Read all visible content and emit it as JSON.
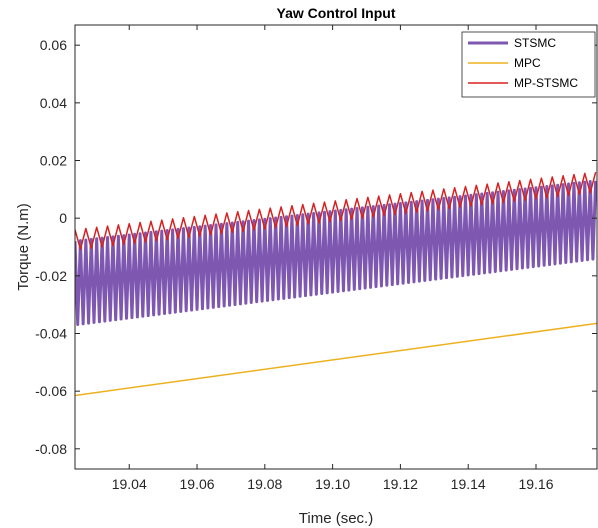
{
  "chart_data": {
    "type": "line",
    "title": "Yaw Control Input",
    "xlabel": "Time (sec.)",
    "ylabel": "Torque (N.m)",
    "xlim": [
      19.024,
      19.178
    ],
    "ylim": [
      -0.087,
      0.067
    ],
    "xticks": [
      19.04,
      19.06,
      19.08,
      19.1,
      19.12,
      19.14,
      19.16
    ],
    "xtick_labels": [
      "19.04",
      "19.06",
      "19.08",
      "19.10",
      "19.12",
      "19.14",
      "19.16"
    ],
    "yticks": [
      0.06,
      0.04,
      0.02,
      0,
      -0.02,
      -0.04,
      -0.06,
      -0.08
    ],
    "ytick_labels": [
      "0.06",
      "0.04",
      "0.02",
      "0",
      "-0.02",
      "-0.04",
      "-0.06",
      "-0.08"
    ],
    "grid": false,
    "legend_position": "top-right",
    "series": [
      {
        "name": "STSMC",
        "color": "#7E57B0",
        "line_width": 3,
        "description_model": "oscillation",
        "x_start": 19.024,
        "x_end": 19.178,
        "period": 0.0016,
        "upper_start": -0.008,
        "upper_end": 0.013,
        "lower_start": -0.037,
        "lower_end": -0.014
      },
      {
        "name": "MPC",
        "color": "#EDB120",
        "line_width": 1.5,
        "x": [
          19.024,
          19.178
        ],
        "y": [
          -0.0615,
          -0.0365
        ]
      },
      {
        "name": "MP-STSMC",
        "color": "#D92020",
        "line_width": 1.5,
        "description_model": "oscillation",
        "x_start": 19.024,
        "x_end": 19.178,
        "period": 0.0032,
        "upper_start": -0.004,
        "upper_end": 0.016,
        "lower_start": -0.011,
        "lower_end": 0.009
      }
    ]
  }
}
